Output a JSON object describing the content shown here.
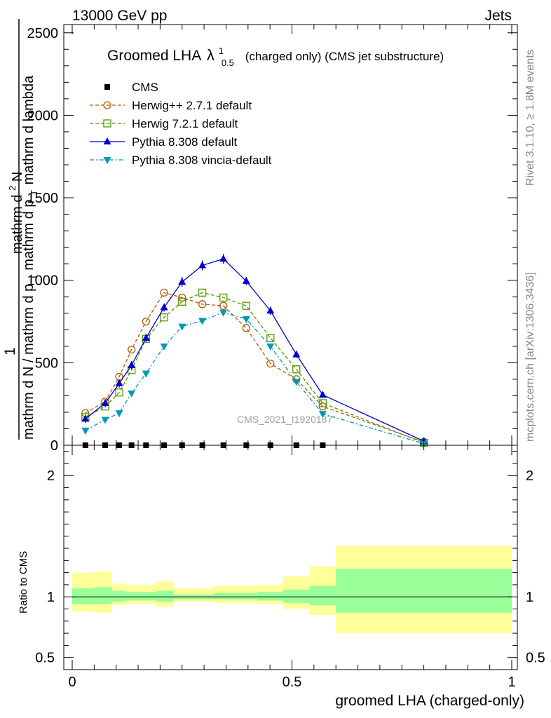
{
  "header": {
    "left": "13000 GeV pp",
    "right": "Jets"
  },
  "side_labels": {
    "rivet": "Rivet 3.1.10, ≥ 1.8M events",
    "mcplots": "mcplots.cern.ch [arXiv:1306.3436]"
  },
  "chart_data": [
    {
      "type": "line",
      "panel": "main",
      "title_main": "Groomed LHA",
      "title_symbol": "λ",
      "title_sup": "1",
      "title_sub": "0.5",
      "title_rest": "(charged only) (CMS jet substructure)",
      "watermark": "CMS_2021_I1920187",
      "ylabel_numerator": "1",
      "ylabel_numerator_right": "mathrm d",
      "ylabel_numerator_sup": "2",
      "ylabel_numerator_rest": "N",
      "ylabel_denominator": "mathrm d N / mathrm d p",
      "ylabel_denominator_sub": "T",
      "ylabel_denominator_rest": "mathrm d p",
      "ylabel_denominator_sub2": "T",
      "ylabel_denominator_rest2": "mathrm d lambda",
      "xlim": [
        0,
        1
      ],
      "ylim": [
        0,
        2550
      ],
      "yticks": [
        0,
        500,
        1000,
        1500,
        2000,
        2500
      ],
      "ytick_labels": [
        "0",
        "500",
        "1000",
        "1500",
        "2000",
        "2500"
      ],
      "x": [
        0.03,
        0.075,
        0.107,
        0.135,
        0.168,
        0.209,
        0.25,
        0.296,
        0.344,
        0.396,
        0.451,
        0.51,
        0.57,
        0.8
      ],
      "series": [
        {
          "name": "CMS",
          "label": "CMS",
          "color": "#000000",
          "marker": "square-filled",
          "dash": "",
          "values": [
            0,
            0,
            0,
            0,
            0,
            0,
            0,
            0,
            0,
            0,
            0,
            0,
            0,
            null
          ]
        },
        {
          "name": "Herwig++ 2.7.1 default",
          "label": "Herwig++ 2.7.1 default",
          "color": "#b35900",
          "marker": "circle-open",
          "dash": "5,3",
          "values": [
            195,
            265,
            415,
            580,
            750,
            925,
            895,
            855,
            845,
            710,
            495,
            400,
            235,
            20
          ]
        },
        {
          "name": "Herwig 7.2.1 default",
          "label": "Herwig 7.2.1 default",
          "color": "#4d9900",
          "marker": "square-open",
          "dash": "5,3",
          "values": [
            170,
            235,
            320,
            455,
            645,
            775,
            870,
            925,
            895,
            845,
            650,
            460,
            255,
            15
          ]
        },
        {
          "name": "Pythia 8.308 default",
          "label": "Pythia 8.308 default",
          "color": "#0000cc",
          "marker": "triangle-up",
          "dash": "",
          "values": [
            160,
            255,
            375,
            485,
            650,
            835,
            990,
            1090,
            1130,
            995,
            815,
            550,
            305,
            25
          ]
        },
        {
          "name": "Pythia 8.308 vincia-default",
          "label": "Pythia 8.308 vincia-default",
          "color": "#0099b3",
          "marker": "triangle-down",
          "dash": "6,3,2,3",
          "values": [
            90,
            155,
            195,
            315,
            435,
            600,
            720,
            755,
            805,
            765,
            600,
            385,
            190,
            10
          ]
        }
      ],
      "error_bars": [
        25,
        25,
        25,
        25,
        25,
        25,
        30,
        30,
        30,
        25,
        25,
        20,
        15,
        10
      ]
    },
    {
      "type": "band",
      "panel": "ratio",
      "ylabel": "Ratio to CMS",
      "xlabel": "groomed LHA (charged-only)",
      "xlim": [
        0,
        1
      ],
      "ylim": [
        0.4,
        2.25
      ],
      "yticks": [
        0.5,
        1,
        2
      ],
      "ytick_labels": [
        "0.5",
        "1",
        "2"
      ],
      "xticks": [
        0,
        0.5,
        1
      ],
      "xtick_labels": [
        "0",
        "0.5",
        "1"
      ],
      "bins": [
        0,
        0.05,
        0.09,
        0.12,
        0.15,
        0.19,
        0.23,
        0.27,
        0.32,
        0.37,
        0.42,
        0.48,
        0.54,
        0.6,
        1.0
      ],
      "band_outer": [
        [
          0.88,
          1.2
        ],
        [
          0.87,
          1.21
        ],
        [
          0.93,
          1.11
        ],
        [
          0.94,
          1.1
        ],
        [
          0.94,
          1.1
        ],
        [
          0.92,
          1.13
        ],
        [
          0.96,
          1.07
        ],
        [
          0.96,
          1.07
        ],
        [
          0.95,
          1.09
        ],
        [
          0.95,
          1.09
        ],
        [
          0.94,
          1.1
        ],
        [
          0.9,
          1.17
        ],
        [
          0.85,
          1.25
        ],
        [
          0.7,
          1.42
        ]
      ],
      "band_inner": [
        [
          0.94,
          1.07
        ],
        [
          0.94,
          1.08
        ],
        [
          0.96,
          1.05
        ],
        [
          0.97,
          1.04
        ],
        [
          0.97,
          1.04
        ],
        [
          0.96,
          1.05
        ],
        [
          0.98,
          1.02
        ],
        [
          0.98,
          1.02
        ],
        [
          0.98,
          1.03
        ],
        [
          0.98,
          1.03
        ],
        [
          0.97,
          1.04
        ],
        [
          0.95,
          1.06
        ],
        [
          0.93,
          1.09
        ],
        [
          0.87,
          1.23
        ]
      ],
      "colors": {
        "outer": "#ffff99",
        "inner": "#99ff99",
        "line": "#000000"
      }
    }
  ]
}
